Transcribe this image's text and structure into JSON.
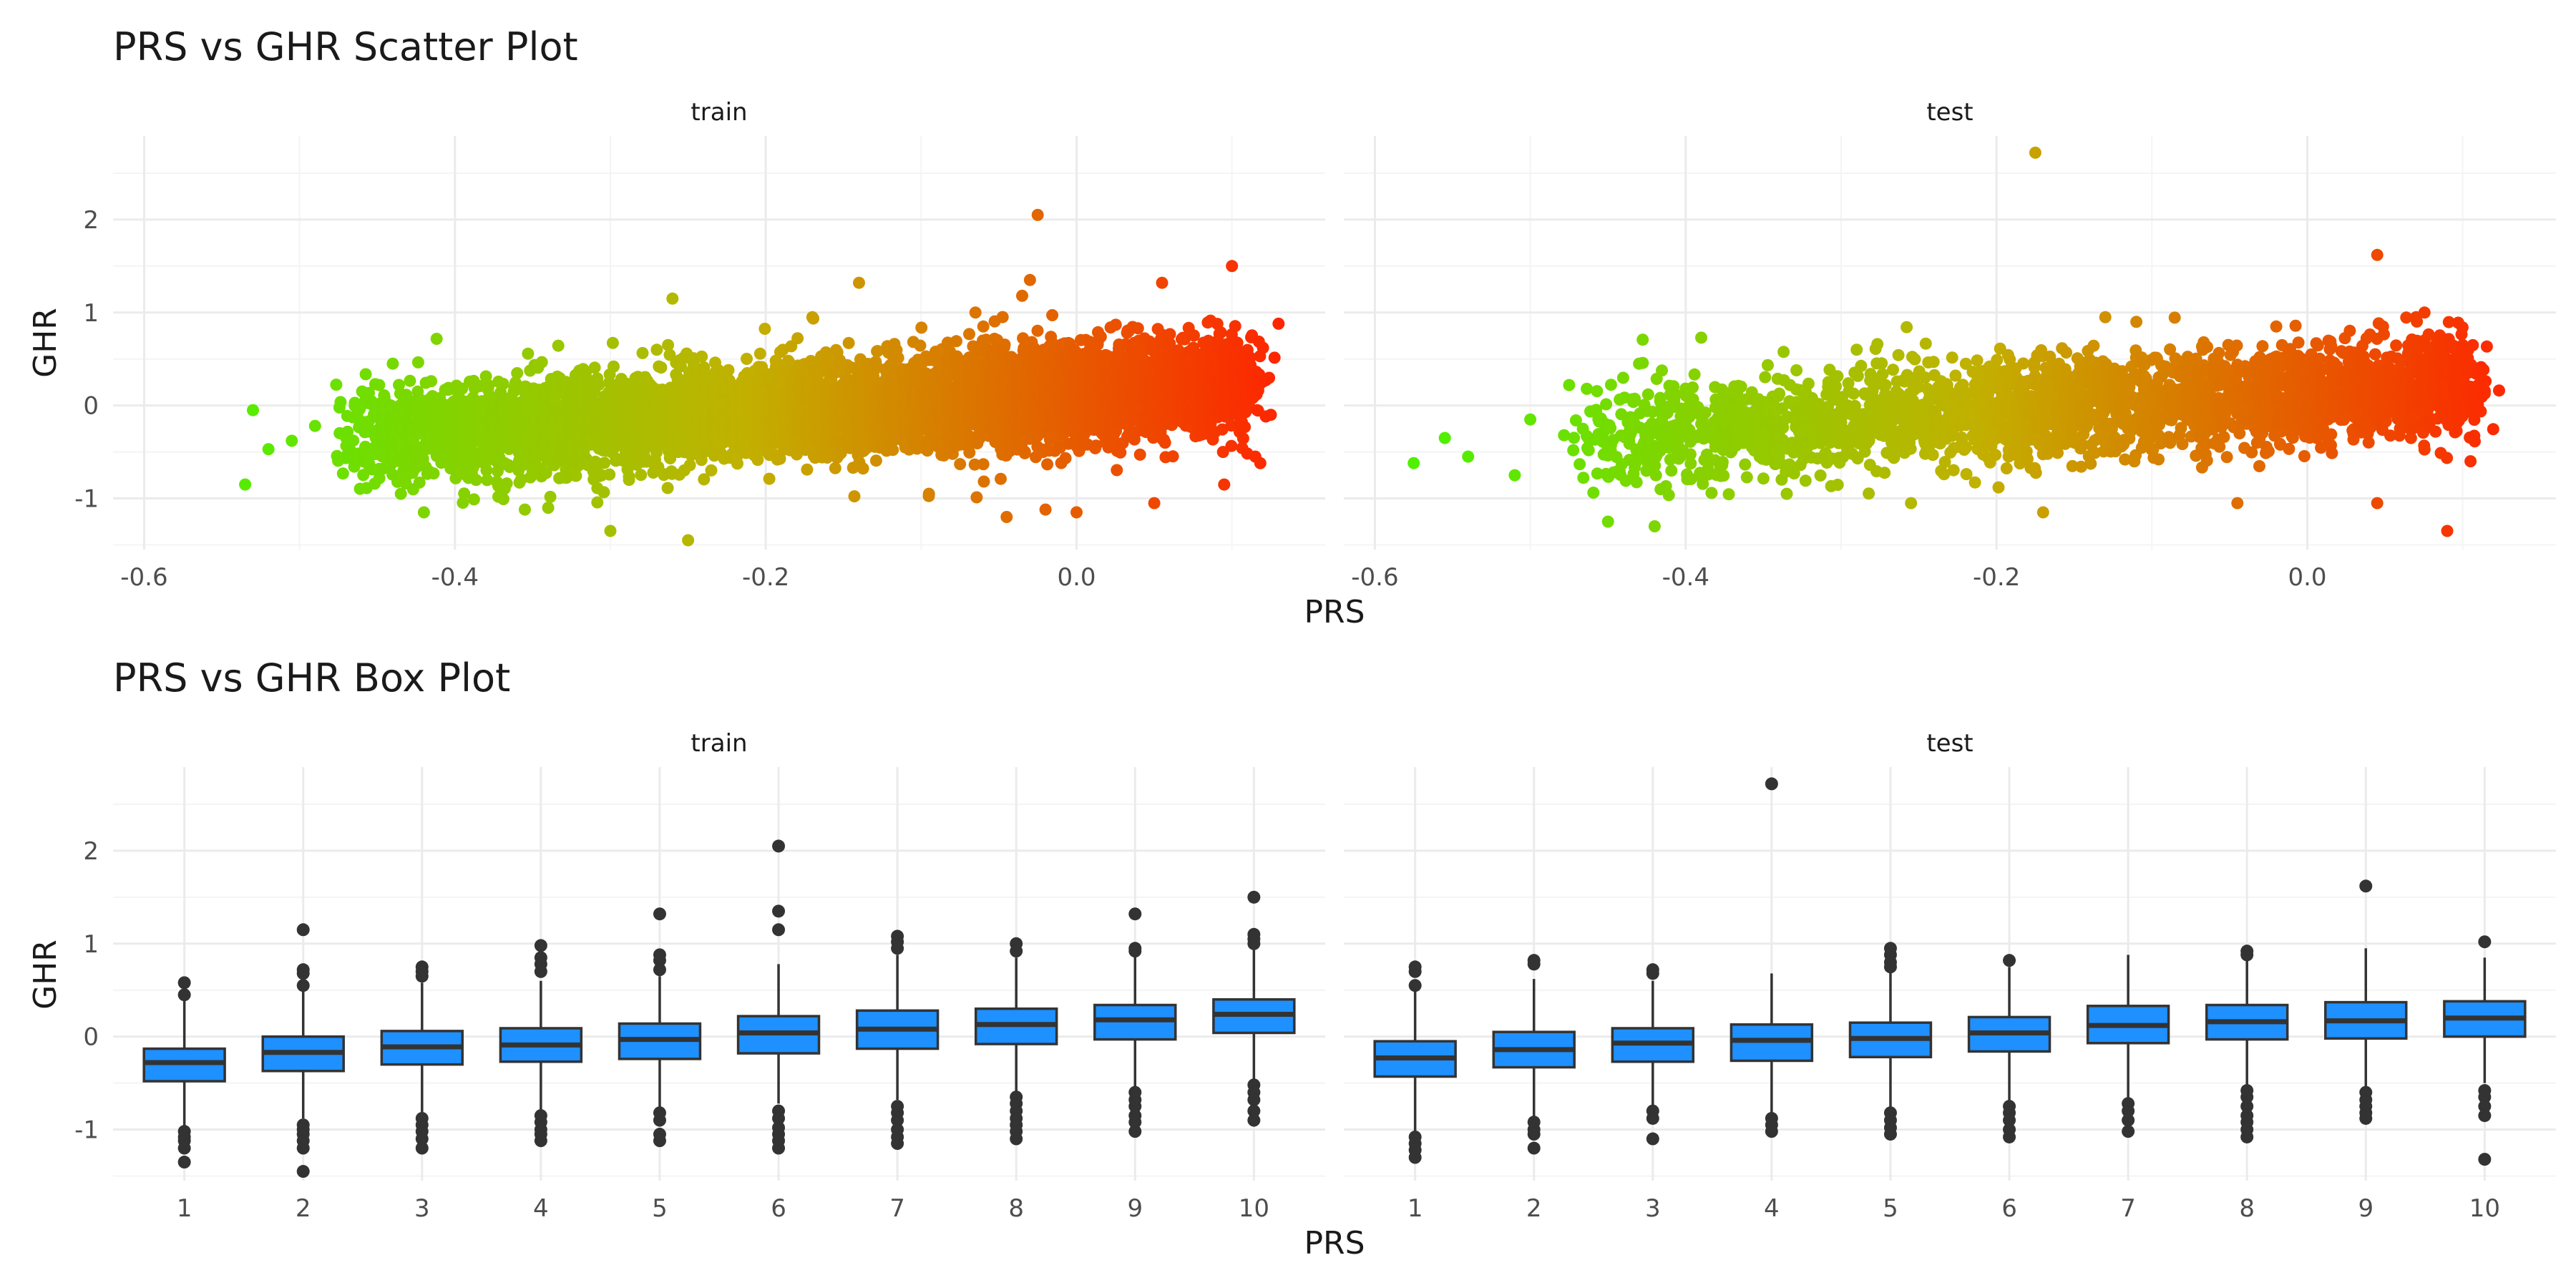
{
  "figure": {
    "scatter": {
      "title": "PRS vs GHR Scatter Plot",
      "xlabel": "PRS",
      "ylabel": "GHR"
    },
    "box": {
      "title": "PRS vs GHR Box Plot",
      "xlabel": "PRS",
      "ylabel": "GHR"
    }
  },
  "chart_data": [
    {
      "type": "scatter",
      "title": "PRS vs GHR Scatter Plot",
      "xlabel": "PRS",
      "ylabel": "GHR",
      "facets": [
        "train",
        "test"
      ],
      "xlim": [
        -0.62,
        0.16
      ],
      "ylim": [
        -1.55,
        2.9
      ],
      "x_ticks": [
        -0.6,
        -0.4,
        -0.2,
        0.0
      ],
      "x_tick_labels": [
        "-0.6",
        "-0.4",
        "-0.2",
        "0.0"
      ],
      "y_ticks": [
        -1,
        0,
        1,
        2
      ],
      "y_tick_labels": [
        "-1",
        "0",
        "1",
        "2"
      ],
      "grid": true,
      "legend": "none",
      "color_scale": {
        "low_prs_color": "#4ff000",
        "mid_prs_color": "#c2b000",
        "high_prs_color": "#ff2200"
      },
      "trend": {
        "x_min": -0.47,
        "x_max": 0.11,
        "y_at_min": -0.35,
        "y_at_max": 0.25,
        "spread_sd": 0.27
      },
      "series": [
        {
          "facet": "train",
          "description_points": [
            [
              -0.53,
              -0.05
            ],
            [
              -0.535,
              -0.85
            ],
            [
              -0.52,
              -0.47
            ],
            [
              -0.505,
              -0.38
            ],
            [
              -0.49,
              -0.22
            ],
            [
              -0.44,
              0.45
            ],
            [
              -0.42,
              -1.15
            ],
            [
              -0.355,
              -1.12
            ],
            [
              -0.34,
              -1.1
            ],
            [
              -0.3,
              -1.35
            ],
            [
              -0.26,
              1.15
            ],
            [
              -0.25,
              -1.45
            ],
            [
              -0.17,
              0.95
            ],
            [
              -0.14,
              1.32
            ],
            [
              -0.095,
              -0.95
            ],
            [
              -0.06,
              0.85
            ],
            [
              -0.045,
              -1.2
            ],
            [
              -0.035,
              1.18
            ],
            [
              -0.025,
              2.05
            ],
            [
              -0.03,
              1.35
            ],
            [
              -0.02,
              -1.12
            ],
            [
              0.0,
              -1.15
            ],
            [
              0.055,
              1.32
            ],
            [
              0.05,
              -1.05
            ],
            [
              0.095,
              -0.85
            ],
            [
              0.1,
              1.5
            ],
            [
              0.115,
              -0.55
            ],
            [
              0.13,
              0.88
            ],
            [
              0.12,
              0.62
            ],
            [
              0.125,
              -0.1
            ]
          ]
        },
        {
          "facet": "test",
          "description_points": [
            [
              -0.575,
              -0.62
            ],
            [
              -0.555,
              -0.35
            ],
            [
              -0.54,
              -0.55
            ],
            [
              -0.51,
              -0.75
            ],
            [
              -0.5,
              -0.15
            ],
            [
              -0.475,
              0.22
            ],
            [
              -0.45,
              -1.25
            ],
            [
              -0.43,
              0.45
            ],
            [
              -0.42,
              -1.3
            ],
            [
              -0.39,
              0.73
            ],
            [
              -0.335,
              -0.95
            ],
            [
              -0.29,
              0.6
            ],
            [
              -0.255,
              -1.05
            ],
            [
              -0.175,
              2.72
            ],
            [
              -0.17,
              -1.15
            ],
            [
              -0.13,
              0.95
            ],
            [
              -0.11,
              0.9
            ],
            [
              -0.045,
              -1.05
            ],
            [
              -0.02,
              0.85
            ],
            [
              0.045,
              1.62
            ],
            [
              0.045,
              -1.05
            ],
            [
              0.07,
              0.95
            ],
            [
              0.09,
              -1.35
            ],
            [
              0.1,
              0.65
            ],
            [
              0.11,
              0.22
            ],
            [
              0.105,
              -0.6
            ]
          ]
        }
      ]
    },
    {
      "type": "box",
      "title": "PRS vs GHR Box Plot",
      "xlabel": "PRS",
      "ylabel": "GHR",
      "categories": [
        "1",
        "2",
        "3",
        "4",
        "5",
        "6",
        "7",
        "8",
        "9",
        "10"
      ],
      "ylim": [
        -1.55,
        2.9
      ],
      "y_ticks": [
        -1,
        0,
        1,
        2
      ],
      "y_tick_labels": [
        "-1",
        "0",
        "1",
        "2"
      ],
      "grid": true,
      "legend": "none",
      "box_fill": "#1e90ff",
      "box_stroke": "#333333",
      "outlier_color": "#333333",
      "facets": [
        {
          "name": "train",
          "boxes": [
            {
              "q1": -0.48,
              "median": -0.28,
              "q3": -0.13,
              "whisker_low": -0.98,
              "whisker_high": 0.43,
              "outliers": [
                0.58,
                0.45,
                -1.02,
                -1.08,
                -1.12,
                -1.2,
                -1.35
              ]
            },
            {
              "q1": -0.37,
              "median": -0.17,
              "q3": 0.0,
              "whisker_low": -0.88,
              "whisker_high": 0.52,
              "outliers": [
                1.15,
                0.72,
                0.68,
                0.55,
                -0.95,
                -1.0,
                -1.05,
                -1.12,
                -1.2,
                -1.45
              ]
            },
            {
              "q1": -0.3,
              "median": -0.11,
              "q3": 0.06,
              "whisker_low": -0.82,
              "whisker_high": 0.58,
              "outliers": [
                0.75,
                0.7,
                0.65,
                -0.88,
                -0.95,
                -1.02,
                -1.1,
                -1.2
              ]
            },
            {
              "q1": -0.27,
              "median": -0.09,
              "q3": 0.09,
              "whisker_low": -0.8,
              "whisker_high": 0.6,
              "outliers": [
                0.98,
                0.85,
                0.78,
                0.7,
                -0.85,
                -0.92,
                -1.0,
                -1.05,
                -1.12
              ]
            },
            {
              "q1": -0.24,
              "median": -0.03,
              "q3": 0.14,
              "whisker_low": -0.78,
              "whisker_high": 0.65,
              "outliers": [
                1.32,
                0.88,
                0.82,
                0.72,
                -0.82,
                -0.9,
                -1.05,
                -1.12
              ]
            },
            {
              "q1": -0.18,
              "median": 0.04,
              "q3": 0.22,
              "whisker_low": -0.72,
              "whisker_high": 0.78,
              "outliers": [
                2.05,
                1.35,
                1.15,
                -0.8,
                -0.88,
                -0.98,
                -1.05,
                -1.12,
                -1.2
              ]
            },
            {
              "q1": -0.13,
              "median": 0.08,
              "q3": 0.28,
              "whisker_low": -0.68,
              "whisker_high": 0.88,
              "outliers": [
                1.08,
                1.02,
                0.95,
                -0.75,
                -0.82,
                -0.9,
                -1.0,
                -1.08,
                -1.15
              ]
            },
            {
              "q1": -0.08,
              "median": 0.13,
              "q3": 0.3,
              "whisker_low": -0.6,
              "whisker_high": 0.85,
              "outliers": [
                1.0,
                0.92,
                -0.65,
                -0.72,
                -0.8,
                -0.88,
                -0.95,
                -1.02,
                -1.1
              ]
            },
            {
              "q1": -0.03,
              "median": 0.18,
              "q3": 0.34,
              "whisker_low": -0.55,
              "whisker_high": 0.88,
              "outliers": [
                1.32,
                0.95,
                0.92,
                -0.6,
                -0.68,
                -0.75,
                -0.85,
                -0.92,
                -1.02
              ]
            },
            {
              "q1": 0.04,
              "median": 0.24,
              "q3": 0.4,
              "whisker_low": -0.48,
              "whisker_high": 0.95,
              "outliers": [
                1.5,
                1.1,
                1.05,
                1.0,
                -0.52,
                -0.6,
                -0.68,
                -0.8,
                -0.9
              ]
            }
          ]
        },
        {
          "name": "test",
          "boxes": [
            {
              "q1": -0.43,
              "median": -0.23,
              "q3": -0.05,
              "whisker_low": -1.02,
              "whisker_high": 0.5,
              "outliers": [
                0.75,
                0.7,
                0.55,
                -1.08,
                -1.15,
                -1.22,
                -1.3
              ]
            },
            {
              "q1": -0.33,
              "median": -0.14,
              "q3": 0.05,
              "whisker_low": -0.88,
              "whisker_high": 0.62,
              "outliers": [
                0.82,
                0.78,
                -0.92,
                -1.0,
                -1.05,
                -1.2
              ]
            },
            {
              "q1": -0.27,
              "median": -0.07,
              "q3": 0.09,
              "whisker_low": -0.75,
              "whisker_high": 0.6,
              "outliers": [
                0.72,
                0.68,
                -0.8,
                -0.88,
                -1.1
              ]
            },
            {
              "q1": -0.26,
              "median": -0.04,
              "q3": 0.13,
              "whisker_low": -0.82,
              "whisker_high": 0.68,
              "outliers": [
                2.72,
                -0.88,
                -0.95,
                -1.02
              ]
            },
            {
              "q1": -0.22,
              "median": -0.02,
              "q3": 0.15,
              "whisker_low": -0.78,
              "whisker_high": 0.7,
              "outliers": [
                0.95,
                0.88,
                0.8,
                0.75,
                -0.82,
                -0.9,
                -0.98,
                -1.05
              ]
            },
            {
              "q1": -0.16,
              "median": 0.04,
              "q3": 0.21,
              "whisker_low": -0.7,
              "whisker_high": 0.75,
              "outliers": [
                0.82,
                -0.75,
                -0.82,
                -0.9,
                -1.0,
                -1.08
              ]
            },
            {
              "q1": -0.07,
              "median": 0.12,
              "q3": 0.33,
              "whisker_low": -0.68,
              "whisker_high": 0.88,
              "outliers": [
                -0.72,
                -0.8,
                -0.9,
                -1.02
              ]
            },
            {
              "q1": -0.03,
              "median": 0.16,
              "q3": 0.34,
              "whisker_low": -0.55,
              "whisker_high": 0.85,
              "outliers": [
                0.92,
                0.88,
                -0.58,
                -0.65,
                -0.75,
                -0.85,
                -0.92,
                -1.0,
                -1.08
              ]
            },
            {
              "q1": -0.02,
              "median": 0.17,
              "q3": 0.37,
              "whisker_low": -0.55,
              "whisker_high": 0.95,
              "outliers": [
                1.62,
                -0.6,
                -0.68,
                -0.75,
                -0.82,
                -0.88
              ]
            },
            {
              "q1": 0.0,
              "median": 0.2,
              "q3": 0.38,
              "whisker_low": -0.5,
              "whisker_high": 0.85,
              "outliers": [
                1.02,
                -0.58,
                -0.65,
                -0.75,
                -0.85,
                -1.32
              ]
            }
          ]
        }
      ]
    }
  ]
}
